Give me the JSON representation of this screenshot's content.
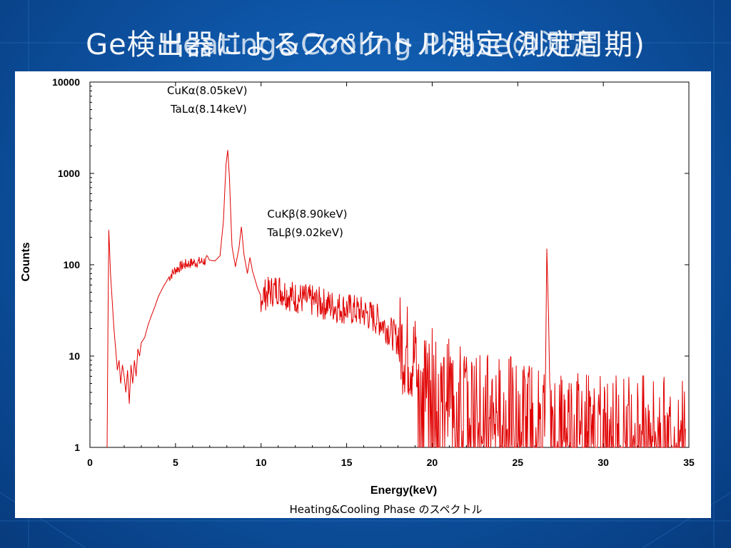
{
  "slide": {
    "title": "Ge検出器によるスペクトル測定(測定周期)",
    "title_overlay": "Heating&Cooling Phaseの測定"
  },
  "chart_data": {
    "type": "line",
    "xlabel": "Energy(keV)",
    "ylabel": "Counts",
    "caption": "Heating&Cooling Phase のスペクトル",
    "xlim": [
      0,
      35
    ],
    "ylim": [
      1,
      10000
    ],
    "yscale": "log",
    "grid": false,
    "x_ticks": [
      "0",
      "5",
      "10",
      "15",
      "20",
      "25",
      "30",
      "35"
    ],
    "y_ticks": [
      "1",
      "10",
      "100",
      "1000",
      "10000"
    ],
    "series": [
      {
        "color": "#e00000",
        "points": [
          [
            1.0,
            1
          ],
          [
            1.05,
            20
          ],
          [
            1.1,
            240
          ],
          [
            1.15,
            140
          ],
          [
            1.2,
            80
          ],
          [
            1.3,
            40
          ],
          [
            1.4,
            20
          ],
          [
            1.5,
            12
          ],
          [
            1.6,
            7
          ],
          [
            1.7,
            9
          ],
          [
            1.8,
            5
          ],
          [
            1.9,
            8
          ],
          [
            2.0,
            6
          ],
          [
            2.1,
            4
          ],
          [
            2.2,
            7
          ],
          [
            2.3,
            3
          ],
          [
            2.4,
            8
          ],
          [
            2.5,
            5
          ],
          [
            2.6,
            9
          ],
          [
            2.7,
            6
          ],
          [
            2.8,
            12
          ],
          [
            2.9,
            10
          ],
          [
            3.0,
            14
          ],
          [
            3.2,
            16
          ],
          [
            3.4,
            22
          ],
          [
            3.6,
            28
          ],
          [
            3.8,
            35
          ],
          [
            4.0,
            45
          ],
          [
            4.3,
            58
          ],
          [
            4.6,
            72
          ],
          [
            5.0,
            88
          ],
          [
            5.5,
            100
          ],
          [
            6.0,
            105
          ],
          [
            6.5,
            108
          ],
          [
            7.0,
            112
          ],
          [
            7.3,
            110
          ],
          [
            7.6,
            125
          ],
          [
            7.8,
            300
          ],
          [
            7.95,
            1250
          ],
          [
            8.05,
            1800
          ],
          [
            8.15,
            900
          ],
          [
            8.3,
            160
          ],
          [
            8.5,
            95
          ],
          [
            8.7,
            150
          ],
          [
            8.85,
            260
          ],
          [
            9.0,
            130
          ],
          [
            9.2,
            80
          ],
          [
            9.35,
            120
          ],
          [
            9.5,
            85
          ],
          [
            9.8,
            55
          ],
          [
            10.0,
            45
          ],
          [
            10.5,
            50
          ],
          [
            11.0,
            55
          ],
          [
            11.5,
            48
          ],
          [
            12.0,
            44
          ],
          [
            13.0,
            40
          ],
          [
            14.0,
            36
          ],
          [
            15.0,
            33
          ],
          [
            16.0,
            30
          ],
          [
            17.0,
            24
          ],
          [
            18.0,
            15
          ],
          [
            19.0,
            9
          ],
          [
            20.0,
            6
          ],
          [
            21.0,
            4.5
          ],
          [
            22.0,
            3.8
          ],
          [
            23.0,
            3.2
          ],
          [
            24.0,
            3.0
          ],
          [
            25.0,
            2.8
          ],
          [
            26.0,
            2.5
          ],
          [
            26.6,
            2.4
          ],
          [
            26.7,
            150
          ],
          [
            26.8,
            28
          ],
          [
            26.9,
            2.3
          ],
          [
            28.0,
            2.2
          ],
          [
            30.0,
            2.0
          ],
          [
            32.0,
            1.8
          ],
          [
            34.0,
            1.7
          ],
          [
            34.8,
            1.6
          ]
        ]
      }
    ],
    "annotations": [
      {
        "text": "CuKα(8.05keV)",
        "x": 8.05,
        "y": 1800
      },
      {
        "text": "TaLα(8.14keV)",
        "x": 8.05,
        "y": 1800
      },
      {
        "text": "CuKβ(8.90keV)",
        "x": 8.9,
        "y": 260
      },
      {
        "text": "TaLβ(9.02keV)",
        "x": 8.9,
        "y": 260
      }
    ]
  }
}
